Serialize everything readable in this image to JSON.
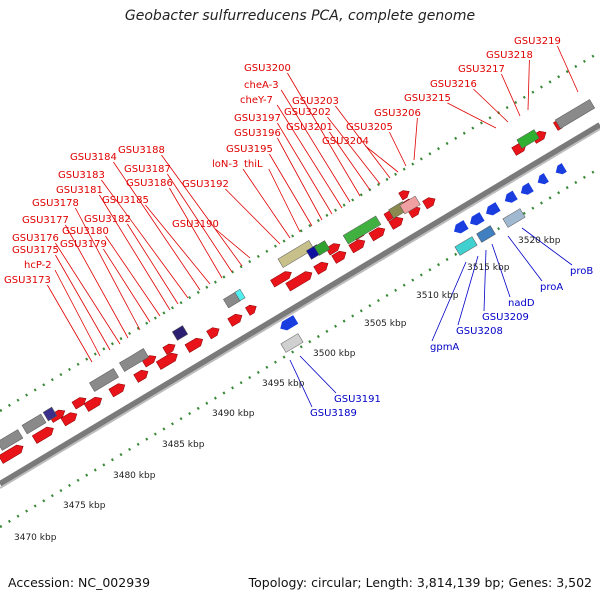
{
  "title": "Geobacter sulfurreducens PCA, complete genome",
  "footer": {
    "accession": "Accession: NC_002939",
    "summary": "Topology: circular; Length: 3,814,139 bp; Genes: 3,502"
  },
  "colors": {
    "forward_gene": "#e8141a",
    "reverse_gene": "#1a3de0",
    "backbone": "#7a7a7a",
    "tick": "#3a8a3a",
    "label_forward": "#e00000",
    "label_reverse": "#0000c8"
  },
  "ruler_ticks": [
    "3470 kbp",
    "3475 kbp",
    "3480 kbp",
    "3485 kbp",
    "3490 kbp",
    "3495 kbp",
    "3500 kbp",
    "3505 kbp",
    "3510 kbp",
    "3515 kbp",
    "3520 kbp"
  ],
  "forward_labels": [
    "GSU3173",
    "hcP-2",
    "GSU3175",
    "GSU3176",
    "GSU3177",
    "GSU3178",
    "GSU3179",
    "GSU3180",
    "GSU3181",
    "GSU3182",
    "GSU3183",
    "GSU3184",
    "GSU3185",
    "GSU3186",
    "GSU3187",
    "GSU3188",
    "GSU3190",
    "GSU3192",
    "loN-3",
    "thiL",
    "GSU3195",
    "GSU3196",
    "GSU3197",
    "cheY-7",
    "cheA-3",
    "GSU3200",
    "GSU3201",
    "GSU3202",
    "GSU3203",
    "GSU3204",
    "GSU3205",
    "GSU3206",
    "GSU3215",
    "GSU3216",
    "GSU3217",
    "GSU3218",
    "GSU3219"
  ],
  "reverse_labels": [
    "GSU3189",
    "GSU3191",
    "gpmA",
    "GSU3208",
    "GSU3209",
    "nadD",
    "proA",
    "proB"
  ]
}
